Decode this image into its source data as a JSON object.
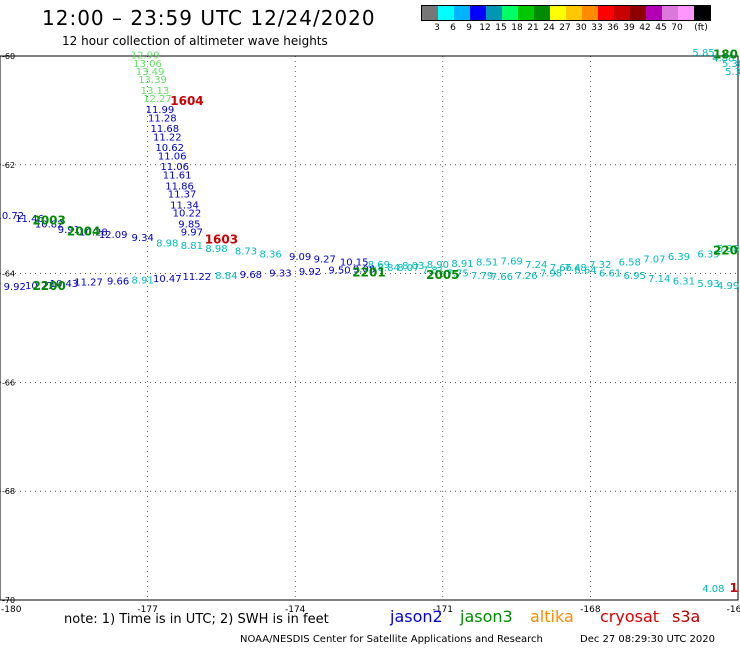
{
  "header": {
    "title": "12:00 – 23:59 UTC 12/24/2020",
    "subtitle": "12 hour collection of altimeter wave heights"
  },
  "legend": {
    "colors": [
      "#777777",
      "#00ffff",
      "#00b4ff",
      "#0000ff",
      "#0096b4",
      "#00ff64",
      "#00c800",
      "#008c00",
      "#ffff00",
      "#ffc800",
      "#ff8c00",
      "#ff0000",
      "#c80000",
      "#8c0000",
      "#b400b4",
      "#dc78dc",
      "#ff96ff",
      "#000000"
    ],
    "ticks": [
      "3",
      "6",
      "9",
      "12",
      "15",
      "18",
      "21",
      "24",
      "27",
      "30",
      "33",
      "36",
      "39",
      "42",
      "45",
      "70",
      "(ft)"
    ]
  },
  "axes": {
    "x_ticks": [
      "-180",
      "-177",
      "-174",
      "-171",
      "-168",
      "-16"
    ],
    "y_ticks": [
      "-60",
      "-62",
      "-64",
      "-66",
      "-68",
      "-70"
    ]
  },
  "chart_data": {
    "type": "scatter",
    "xlim": [
      -180,
      -165
    ],
    "ylim": [
      -70,
      -60
    ],
    "satellite_colors": {
      "jason2": "#0000cc",
      "jason3": "#00a000",
      "altika": "#ff8c00",
      "cryosat": "#cc0000",
      "s3a": "#b40000"
    },
    "tracks": [
      {
        "name": "jason3-desc",
        "points": [
          {
            "x": -177.05,
            "y": -60.05,
            "label": "12.99",
            "color": "#66dd66"
          },
          {
            "x": -177.0,
            "y": -60.2,
            "label": "13.06",
            "color": "#66dd66"
          },
          {
            "x": -176.95,
            "y": -60.35,
            "label": "13.49",
            "color": "#66dd66"
          },
          {
            "x": -176.9,
            "y": -60.5,
            "label": "13.39",
            "color": "#66dd66"
          },
          {
            "x": -176.85,
            "y": -60.7,
            "label": "13.13",
            "color": "#66dd66"
          },
          {
            "x": -176.8,
            "y": -60.85,
            "label": "12.27",
            "color": "#66dd66"
          },
          {
            "x": -176.75,
            "y": -61.05,
            "label": "11.99",
            "color": "#0000cc"
          },
          {
            "x": -176.7,
            "y": -61.2,
            "label": "11.28",
            "color": "#0000cc"
          },
          {
            "x": -176.65,
            "y": -61.4,
            "label": "11.68",
            "color": "#0000cc"
          },
          {
            "x": -176.6,
            "y": -61.55,
            "label": "11.22",
            "color": "#0000cc"
          },
          {
            "x": -176.55,
            "y": -61.75,
            "label": "10.62",
            "color": "#0000cc"
          },
          {
            "x": -176.5,
            "y": -61.9,
            "label": "11.06",
            "color": "#0000cc"
          },
          {
            "x": -176.45,
            "y": -62.1,
            "label": "11.06",
            "color": "#0000cc"
          },
          {
            "x": -176.4,
            "y": -62.25,
            "label": "11.61",
            "color": "#0000cc"
          },
          {
            "x": -176.35,
            "y": -62.45,
            "label": "11.86",
            "color": "#0000cc"
          },
          {
            "x": -176.3,
            "y": -62.6,
            "label": "11.37",
            "color": "#0000cc"
          },
          {
            "x": -176.25,
            "y": -62.8,
            "label": "11.34",
            "color": "#0000cc"
          },
          {
            "x": -176.2,
            "y": -62.95,
            "label": "10.22",
            "color": "#0000cc"
          },
          {
            "x": -176.15,
            "y": -63.15,
            "label": "9.85",
            "color": "#0000cc"
          },
          {
            "x": -176.1,
            "y": -63.3,
            "label": "9.97",
            "color": "#0000cc"
          }
        ]
      },
      {
        "name": "s3a-upper",
        "points": [
          {
            "x": -179.8,
            "y": -63.0,
            "label": "10.72",
            "color": "#0000cc"
          },
          {
            "x": -179.4,
            "y": -63.05,
            "label": "11.46",
            "color": "#0000cc"
          },
          {
            "x": -179.0,
            "y": -63.15,
            "label": "10.82",
            "color": "#0000cc"
          },
          {
            "x": -178.6,
            "y": -63.25,
            "label": "9.91",
            "color": "#0000cc"
          },
          {
            "x": -178.1,
            "y": -63.3,
            "label": "10.28",
            "color": "#0000cc"
          },
          {
            "x": -177.7,
            "y": -63.35,
            "label": "12.09",
            "color": "#0000cc"
          },
          {
            "x": -177.1,
            "y": -63.4,
            "label": "9.34",
            "color": "#0000cc"
          },
          {
            "x": -176.6,
            "y": -63.5,
            "label": "8.98",
            "color": "#00bbbb"
          },
          {
            "x": -176.1,
            "y": -63.55,
            "label": "8.81",
            "color": "#00bbbb"
          },
          {
            "x": -175.6,
            "y": -63.6,
            "label": "8.98",
            "color": "#00bbbb"
          },
          {
            "x": -175.0,
            "y": -63.65,
            "label": "8.73",
            "color": "#00bbbb"
          },
          {
            "x": -174.5,
            "y": -63.7,
            "label": "8.36",
            "color": "#00bbbb"
          },
          {
            "x": -173.9,
            "y": -63.75,
            "label": "9.09",
            "color": "#0000cc"
          },
          {
            "x": -173.4,
            "y": -63.8,
            "label": "9.27",
            "color": "#0000cc"
          },
          {
            "x": -172.8,
            "y": -63.85,
            "label": "10.15",
            "color": "#0000cc"
          },
          {
            "x": -172.3,
            "y": -63.9,
            "label": "8.69",
            "color": "#00bbbb"
          },
          {
            "x": -171.7,
            "y": -63.95,
            "label": "8.07",
            "color": "#00bbbb"
          },
          {
            "x": -171.2,
            "y": -64.0,
            "label": "7.81",
            "color": "#00bbbb"
          },
          {
            "x": -170.7,
            "y": -64.05,
            "label": "7.75",
            "color": "#00bbbb"
          },
          {
            "x": -170.2,
            "y": -64.1,
            "label": "7.79",
            "color": "#00bbbb"
          },
          {
            "x": -169.8,
            "y": -64.12,
            "label": "7.66",
            "color": "#00bbbb"
          },
          {
            "x": -169.3,
            "y": -64.1,
            "label": "7.26",
            "color": "#00bbbb"
          },
          {
            "x": -168.8,
            "y": -64.05,
            "label": "7.98",
            "color": "#00bbbb"
          },
          {
            "x": -168.3,
            "y": -63.95,
            "label": "7.48",
            "color": "#00bbbb"
          },
          {
            "x": -167.8,
            "y": -63.9,
            "label": "7.32",
            "color": "#00bbbb"
          },
          {
            "x": -167.2,
            "y": -63.85,
            "label": "6.58",
            "color": "#00bbbb"
          },
          {
            "x": -166.7,
            "y": -63.8,
            "label": "7.07",
            "color": "#00bbbb"
          },
          {
            "x": -166.2,
            "y": -63.75,
            "label": "6.39",
            "color": "#00bbbb"
          },
          {
            "x": -165.6,
            "y": -63.7,
            "label": "6.39",
            "color": "#00bbbb"
          },
          {
            "x": -165.2,
            "y": -63.6,
            "label": "5.38",
            "color": "#00bbbb"
          }
        ]
      },
      {
        "name": "s3a-lower",
        "points": [
          {
            "x": -179.7,
            "y": -64.3,
            "label": "9.92",
            "color": "#0000cc"
          },
          {
            "x": -179.2,
            "y": -64.28,
            "label": "10.27",
            "color": "#0000cc"
          },
          {
            "x": -178.7,
            "y": -64.25,
            "label": "10.43",
            "color": "#0000cc"
          },
          {
            "x": -178.2,
            "y": -64.22,
            "label": "11.27",
            "color": "#0000cc"
          },
          {
            "x": -177.6,
            "y": -64.2,
            "label": "9.66",
            "color": "#0000cc"
          },
          {
            "x": -177.1,
            "y": -64.18,
            "label": "8.91",
            "color": "#00bbbb"
          },
          {
            "x": -176.6,
            "y": -64.15,
            "label": "10.47",
            "color": "#0000cc"
          },
          {
            "x": -176.0,
            "y": -64.12,
            "label": "11.22",
            "color": "#0000cc"
          },
          {
            "x": -175.4,
            "y": -64.1,
            "label": "8.84",
            "color": "#00bbbb"
          },
          {
            "x": -174.9,
            "y": -64.08,
            "label": "9.68",
            "color": "#0000cc"
          },
          {
            "x": -174.3,
            "y": -64.05,
            "label": "9.33",
            "color": "#0000cc"
          },
          {
            "x": -173.7,
            "y": -64.03,
            "label": "9.92",
            "color": "#0000cc"
          },
          {
            "x": -173.1,
            "y": -64.0,
            "label": "9.50",
            "color": "#0000cc"
          },
          {
            "x": -172.6,
            "y": -63.98,
            "label": "9.08",
            "color": "#0000cc"
          },
          {
            "x": -172.1,
            "y": -63.95,
            "label": "8.84",
            "color": "#00bbbb"
          },
          {
            "x": -171.6,
            "y": -63.92,
            "label": "8.03",
            "color": "#00bbbb"
          },
          {
            "x": -171.1,
            "y": -63.9,
            "label": "8.90",
            "color": "#00bbbb"
          },
          {
            "x": -170.6,
            "y": -63.88,
            "label": "8.91",
            "color": "#00bbbb"
          },
          {
            "x": -170.1,
            "y": -63.85,
            "label": "8.51",
            "color": "#00bbbb"
          },
          {
            "x": -169.6,
            "y": -63.83,
            "label": "7.69",
            "color": "#00bbbb"
          },
          {
            "x": -169.1,
            "y": -63.9,
            "label": "7.24",
            "color": "#00bbbb"
          },
          {
            "x": -168.6,
            "y": -63.95,
            "label": "7.66",
            "color": "#00bbbb"
          },
          {
            "x": -168.1,
            "y": -64.0,
            "label": "6.64",
            "color": "#00bbbb"
          },
          {
            "x": -167.6,
            "y": -64.05,
            "label": "6.61",
            "color": "#00bbbb"
          },
          {
            "x": -167.1,
            "y": -64.1,
            "label": "6.95",
            "color": "#00bbbb"
          },
          {
            "x": -166.6,
            "y": -64.15,
            "label": "7.14",
            "color": "#00bbbb"
          },
          {
            "x": -166.1,
            "y": -64.2,
            "label": "6.31",
            "color": "#00bbbb"
          },
          {
            "x": -165.6,
            "y": -64.25,
            "label": "5.93",
            "color": "#00bbbb"
          },
          {
            "x": -165.2,
            "y": -64.28,
            "label": "4.99",
            "color": "#00bbbb"
          }
        ]
      },
      {
        "name": "upper-right",
        "points": [
          {
            "x": -165.7,
            "y": -60.0,
            "label": "5.85",
            "color": "#00bbbb"
          },
          {
            "x": -165.3,
            "y": -60.1,
            "label": "4.88",
            "color": "#00bbbb"
          },
          {
            "x": -165.1,
            "y": -60.2,
            "label": "5.38",
            "color": "#00bbbb"
          },
          {
            "x": -165.1,
            "y": -60.35,
            "label": "5.3",
            "color": "#00bbbb"
          }
        ]
      },
      {
        "name": "lower-right",
        "points": [
          {
            "x": -165.5,
            "y": -69.85,
            "label": "4.08",
            "color": "#00bbbb"
          }
        ]
      }
    ],
    "time_labels": [
      {
        "x": -176.2,
        "y": -60.9,
        "label": "1604",
        "color": "#cc0000"
      },
      {
        "x": -175.5,
        "y": -63.45,
        "label": "1603",
        "color": "#cc0000"
      },
      {
        "x": -179.0,
        "y": -63.1,
        "label": "2003",
        "color": "#008c00"
      },
      {
        "x": -178.3,
        "y": -63.3,
        "label": "2004",
        "color": "#008c00"
      },
      {
        "x": -171.0,
        "y": -64.1,
        "label": "2005",
        "color": "#008c00"
      },
      {
        "x": -179.0,
        "y": -64.3,
        "label": "2200",
        "color": "#008c00"
      },
      {
        "x": -172.5,
        "y": -64.05,
        "label": "2201",
        "color": "#008c00"
      },
      {
        "x": -165.0,
        "y": -60.05,
        "label": "180",
        "color": "#008c00"
      },
      {
        "x": -165.0,
        "y": -63.65,
        "label": "220",
        "color": "#008c00"
      },
      {
        "x": -165.0,
        "y": -69.85,
        "label": "1",
        "color": "#cc0000"
      }
    ]
  },
  "footer": {
    "note": "note:  1) Time is in UTC;  2) SWH is in feet",
    "satellites": [
      {
        "name": "jason2",
        "color": "#0000dd"
      },
      {
        "name": "jason3",
        "color": "#008c00"
      },
      {
        "name": "altika",
        "color": "#ff8c00"
      },
      {
        "name": "cryosat",
        "color": "#dd0000"
      },
      {
        "name": "s3a",
        "color": "#b40000"
      }
    ],
    "credit": "NOAA/NESDIS Center for Satellite Applications and Research",
    "timestamp": "Dec 27 08:29:30 UTC 2020"
  }
}
